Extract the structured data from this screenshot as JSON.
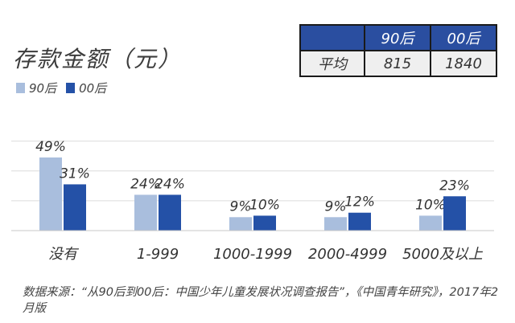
{
  "chart_data": {
    "type": "bar",
    "title": "存款金额（元）",
    "categories": [
      "没有",
      "1-999",
      "1000-1999",
      "2000-4999",
      "5000及以上"
    ],
    "series": [
      {
        "name": "90后",
        "values": [
          49,
          24,
          9,
          9,
          10
        ],
        "labels": [
          "49%",
          "24%",
          "9%",
          "9%",
          "10%"
        ]
      },
      {
        "name": "00后",
        "values": [
          31,
          24,
          10,
          12,
          23
        ],
        "labels": [
          "31%",
          "24%",
          "10%",
          "12%",
          "23%"
        ]
      }
    ],
    "ylim": [
      0,
      70
    ],
    "grid": true,
    "legend": "top-left"
  },
  "colors": {
    "s90": "#a9bedd",
    "s00": "#2451a7",
    "grid": "#dcdcdc"
  },
  "avg_table": {
    "headers": [
      "",
      "90后",
      "00后"
    ],
    "row_label": "平均",
    "values": [
      "815",
      "1840"
    ]
  },
  "source": "数据来源：“从90后到00后：中国少年儿童发展状况调查报告”，《中国青年研究》，2017年2月版"
}
